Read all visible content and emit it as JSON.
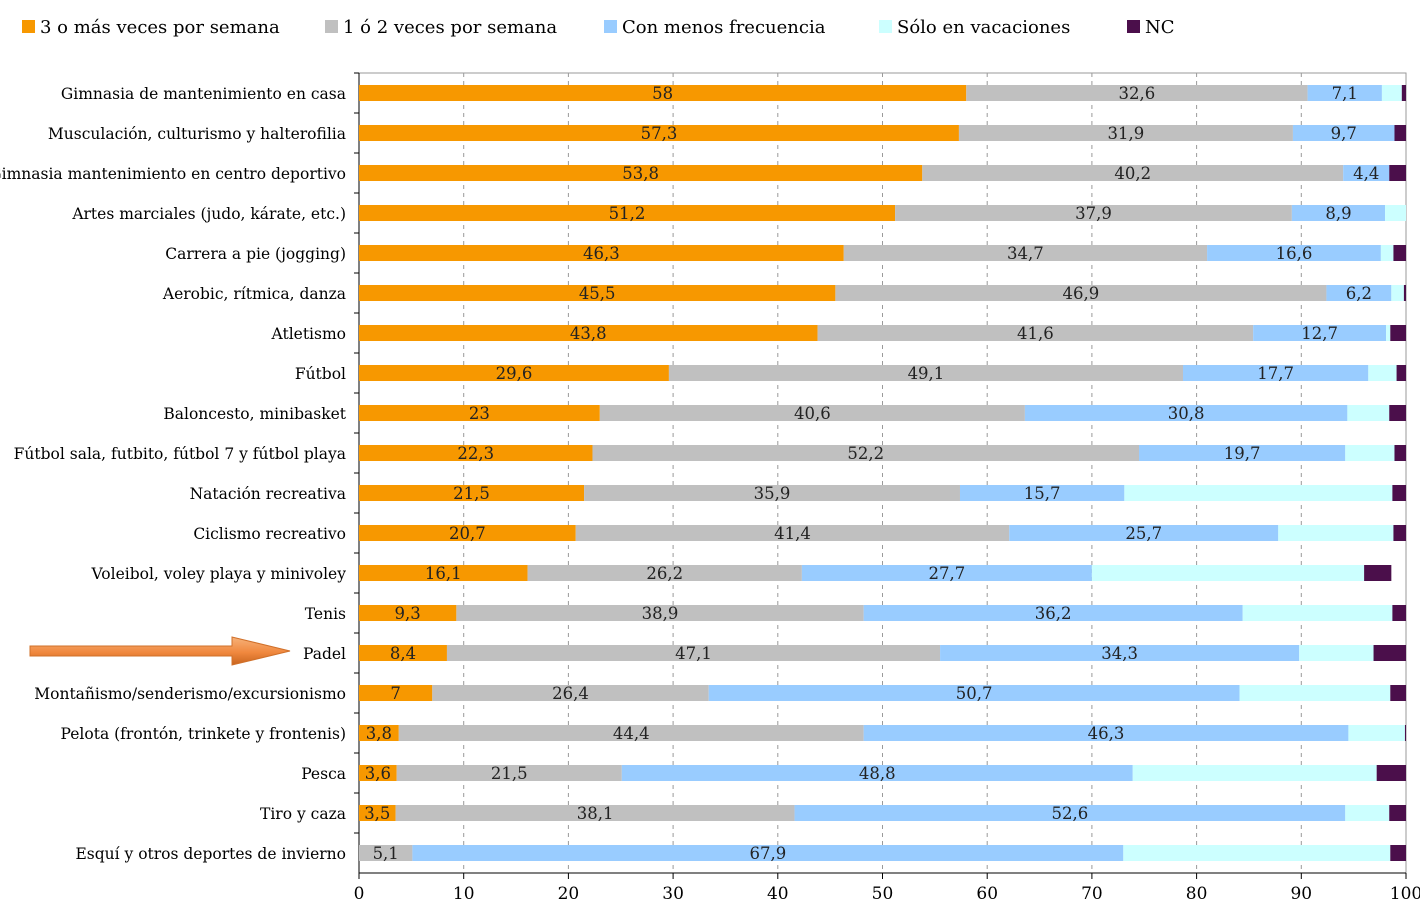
{
  "chart_data": {
    "type": "bar",
    "orientation": "horizontal",
    "stacked": true,
    "categories": [
      "Gimnasia de mantenimiento en casa",
      "Musculación, culturismo y halterofilia",
      "Gimnasia mantenimiento en centro deportivo",
      "Artes marciales (judo, kárate, etc.)",
      "Carrera a pie (jogging)",
      "Aerobic, rítmica, danza",
      "Atletismo",
      "Fútbol",
      "Baloncesto, minibasket",
      "Fútbol sala, futbito, fútbol 7 y fútbol playa",
      "Natación recreativa",
      "Ciclismo recreativo",
      "Voleibol, voley playa y minivoley",
      "Tenis",
      "Padel",
      "Montañismo/senderismo/excursionismo",
      "Pelota (frontón, trinkete y frontenis)",
      "Pesca",
      "Tiro y caza",
      "Esquí y otros deportes de invierno"
    ],
    "series": [
      {
        "name": "3 o más veces por semana",
        "color": "#f79800",
        "values": [
          58,
          57.3,
          53.8,
          51.2,
          46.3,
          45.5,
          43.8,
          29.6,
          23,
          22.3,
          21.5,
          20.7,
          16.1,
          9.3,
          8.4,
          7,
          3.8,
          3.6,
          3.5,
          0
        ],
        "labels": [
          "58",
          "57,3",
          "53,8",
          "51,2",
          "46,3",
          "45,5",
          "43,8",
          "29,6",
          "23",
          "22,3",
          "21,5",
          "20,7",
          "16,1",
          "9,3",
          "8,4",
          "7",
          "3,8",
          "3,6",
          "3,5",
          ""
        ]
      },
      {
        "name": "1 ó 2 veces por semana",
        "color": "#c0c0c0",
        "values": [
          32.6,
          31.9,
          40.2,
          37.9,
          34.7,
          46.9,
          41.6,
          49.1,
          40.6,
          52.2,
          35.9,
          41.4,
          26.2,
          38.9,
          47.1,
          26.4,
          44.4,
          21.5,
          38.1,
          5.1
        ],
        "labels": [
          "32,6",
          "31,9",
          "40,2",
          "37,9",
          "34,7",
          "46,9",
          "41,6",
          "49,1",
          "40,6",
          "52,2",
          "35,9",
          "41,4",
          "26,2",
          "38,9",
          "47,1",
          "26,4",
          "44,4",
          "21,5",
          "38,1",
          "5,1"
        ]
      },
      {
        "name": "Con menos frecuencia",
        "color": "#99ccff",
        "values": [
          7.1,
          9.7,
          4.4,
          8.9,
          16.6,
          6.2,
          12.7,
          17.7,
          30.8,
          19.7,
          15.7,
          25.7,
          27.7,
          36.2,
          34.3,
          50.7,
          46.3,
          48.8,
          52.6,
          67.9
        ],
        "labels": [
          "7,1",
          "9,7",
          "4,4",
          "8,9",
          "16,6",
          "6,2",
          "12,7",
          "17,7",
          "30,8",
          "19,7",
          "15,7",
          "25,7",
          "27,7",
          "36,2",
          "34,3",
          "50,7",
          "46,3",
          "48,8",
          "52,6",
          "67,9"
        ]
      },
      {
        "name": "Sólo en vacaciones",
        "color": "#ccffff",
        "values": [
          1.9,
          0,
          0,
          2,
          1.2,
          1.2,
          0.4,
          2.7,
          4,
          4.7,
          25.6,
          11,
          26,
          14.3,
          7.1,
          14.4,
          5.4,
          23.3,
          4.2,
          25.5
        ],
        "labels": [
          "",
          "",
          "",
          "",
          "",
          "",
          "",
          "",
          "",
          "",
          "",
          "",
          "",
          "",
          "",
          "",
          "",
          "",
          "",
          ""
        ]
      },
      {
        "name": "NC",
        "color": "#4b0f4b",
        "values": [
          0.4,
          1.1,
          1.6,
          0,
          1.2,
          0.2,
          1.5,
          0.9,
          1.6,
          1.1,
          1.3,
          1.2,
          2.6,
          1.3,
          3.1,
          1.5,
          0.1,
          2.8,
          1.6,
          1.5
        ],
        "labels": [
          "",
          "",
          "",
          "",
          "",
          "",
          "",
          "",
          "",
          "",
          "",
          "",
          "",
          "",
          "",
          "",
          "",
          "",
          "",
          ""
        ]
      }
    ],
    "xlim": [
      0,
      100
    ],
    "xticks": [
      "0",
      "10",
      "20",
      "30",
      "40",
      "50",
      "60",
      "70",
      "80",
      "90",
      "100"
    ],
    "grid": "vertical dashed",
    "legend": "top",
    "title": "",
    "xlabel": "",
    "ylabel": "",
    "annotations": [
      {
        "type": "arrow",
        "points_to": "Padel",
        "color": "#f0883e"
      }
    ]
  }
}
